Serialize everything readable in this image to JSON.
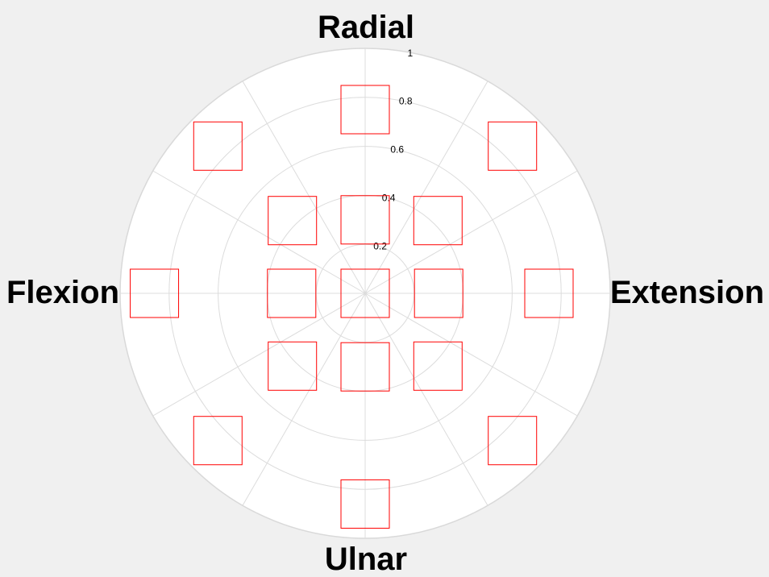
{
  "chart_data": {
    "type": "scatter",
    "subtype": "polar",
    "direction_labels": {
      "top": "Radial",
      "right": "Extension",
      "bottom": "Ulnar",
      "left": "Flexion"
    },
    "radial_ticks": [
      "0.2",
      "0.4",
      "0.6",
      "0.8",
      "1"
    ],
    "radial_tick_values": [
      0.2,
      0.4,
      0.6,
      0.8,
      1.0
    ],
    "r_range": [
      0,
      1
    ],
    "angular_gridlines_deg": [
      0,
      30,
      60,
      90,
      120,
      150,
      180,
      210,
      240,
      270,
      300,
      330
    ],
    "grid": true,
    "marker": "square",
    "marker_color": "#ff0000",
    "points": [
      {
        "angle": 0,
        "r": 0.0
      },
      {
        "angle": 0,
        "r": 0.3
      },
      {
        "angle": 45,
        "r": 0.42
      },
      {
        "angle": 90,
        "r": 0.3
      },
      {
        "angle": 135,
        "r": 0.42
      },
      {
        "angle": 180,
        "r": 0.3
      },
      {
        "angle": 225,
        "r": 0.42
      },
      {
        "angle": 270,
        "r": 0.3
      },
      {
        "angle": 315,
        "r": 0.42
      },
      {
        "angle": 0,
        "r": 0.75
      },
      {
        "angle": 45,
        "r": 0.85
      },
      {
        "angle": 90,
        "r": 0.75
      },
      {
        "angle": 135,
        "r": 0.85
      },
      {
        "angle": 180,
        "r": 0.86
      },
      {
        "angle": 225,
        "r": 0.85
      },
      {
        "angle": 270,
        "r": 0.86
      },
      {
        "angle": 315,
        "r": 0.85
      }
    ]
  }
}
